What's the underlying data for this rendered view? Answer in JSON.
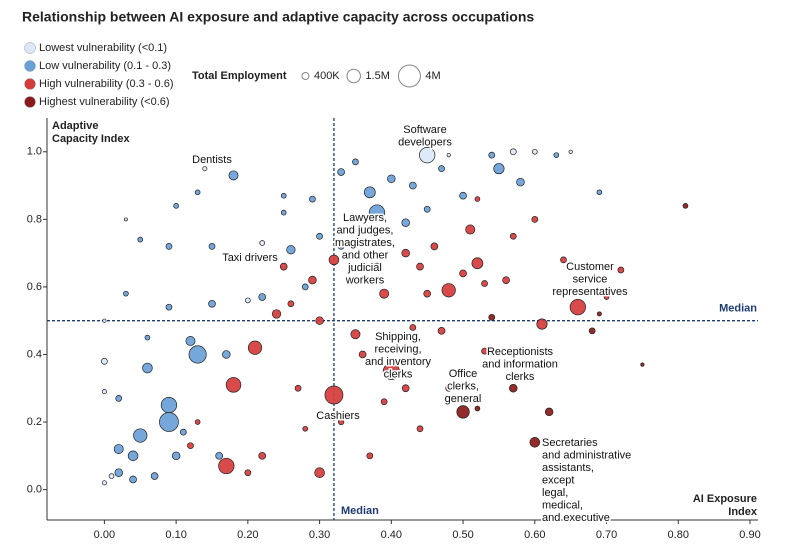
{
  "chart_data": {
    "type": "scatter",
    "title": "Relationship between AI exposure and adaptive capacity across occupations",
    "x_label": [
      "AI Exposure",
      "Index"
    ],
    "y_label": [
      "Adaptive",
      "Capacity Index"
    ],
    "xlim": [
      -0.08,
      0.9
    ],
    "ylim": [
      -0.09,
      1.1
    ],
    "xticks": [
      {
        "value": 0,
        "label": "0.00"
      },
      {
        "value": 0.1,
        "label": "0.10"
      },
      {
        "value": 0.2,
        "label": "0.20"
      },
      {
        "value": 0.3,
        "label": "0.30"
      },
      {
        "value": 0.4,
        "label": "0.40"
      },
      {
        "value": 0.5,
        "label": "0.50"
      },
      {
        "value": 0.6,
        "label": "0.60"
      },
      {
        "value": 0.7,
        "label": "0.70"
      },
      {
        "value": 0.8,
        "label": "0.80"
      },
      {
        "value": 0.9,
        "label": "0.90"
      }
    ],
    "yticks": [
      {
        "value": 0,
        "label": "0.0"
      },
      0.2,
      0.4,
      0.6,
      0.8,
      {
        "value": 1,
        "label": "1.0"
      }
    ],
    "grid": false,
    "medians": {
      "x": 0.32,
      "y": 0.5,
      "label": "Median"
    },
    "size_legend": {
      "title": "Total Employment",
      "sizes": [
        {
          "value": 400000,
          "label": "400K"
        },
        {
          "value": 1500000,
          "label": "1.5M"
        },
        {
          "value": 4000000,
          "label": "4M"
        }
      ]
    },
    "series": [
      {
        "name": "Lowest vulnerability (<0.1)",
        "color": "#dbe8f7",
        "x": [
          0.45,
          0.0,
          0.0,
          0.01,
          0.0,
          0.0,
          0.14,
          0.6,
          0.57,
          0.22,
          0.2,
          0.48,
          0.03,
          0.65
        ],
        "values": [
          0.99,
          0.38,
          0.29,
          0.04,
          0.5,
          0.02,
          0.95,
          1.0,
          1.0,
          0.73,
          0.56,
          0.99,
          0.8,
          1.0
        ],
        "sizes": [
          2000000,
          300000,
          150000,
          200000,
          100000,
          150000,
          150000,
          200000,
          300000,
          200000,
          200000,
          100000,
          80000,
          100000
        ]
      },
      {
        "name": "Low vulnerability (0.1 - 0.3)",
        "color": "#6a9fd8",
        "x": [
          0.13,
          0.09,
          0.05,
          0.09,
          0.02,
          0.04,
          0.06,
          0.12,
          0.02,
          0.04,
          0.07,
          0.1,
          0.17,
          0.15,
          0.26,
          0.18,
          0.38,
          0.37,
          0.43,
          0.55,
          0.58,
          0.4,
          0.35,
          0.5,
          0.47,
          0.54,
          0.63,
          0.29,
          0.25,
          0.1,
          0.05,
          0.09,
          0.15,
          0.28,
          0.22,
          0.09,
          0.03,
          0.06,
          0.02,
          0.16,
          0.11,
          0.33,
          0.45,
          0.42,
          0.69,
          0.33,
          0.3,
          0.13,
          0.25
        ],
        "values": [
          0.4,
          0.25,
          0.16,
          0.2,
          0.12,
          0.1,
          0.36,
          0.44,
          0.05,
          0.03,
          0.04,
          0.1,
          0.4,
          0.55,
          0.71,
          0.93,
          0.82,
          0.88,
          0.9,
          0.95,
          0.91,
          0.92,
          0.97,
          0.87,
          0.95,
          0.99,
          0.99,
          0.86,
          0.82,
          0.84,
          0.74,
          0.72,
          0.72,
          0.6,
          0.57,
          0.54,
          0.58,
          0.45,
          0.27,
          0.1,
          0.17,
          0.94,
          0.83,
          0.79,
          0.88,
          0.72,
          0.75,
          0.88,
          0.87
        ],
        "sizes": [
          2500000,
          2000000,
          1500000,
          3000000,
          700000,
          800000,
          800000,
          700000,
          500000,
          400000,
          400000,
          500000,
          500000,
          400000,
          600000,
          700000,
          2000000,
          1000000,
          400000,
          900000,
          500000,
          500000,
          300000,
          400000,
          300000,
          300000,
          200000,
          300000,
          200000,
          200000,
          200000,
          300000,
          300000,
          300000,
          400000,
          300000,
          200000,
          200000,
          300000,
          400000,
          300000,
          400000,
          300000,
          500000,
          200000,
          300000,
          300000,
          200000,
          200000
        ]
      },
      {
        "name": "High vulnerability (0.3 - 0.6)",
        "color": "#d63b3b",
        "x": [
          0.4,
          0.32,
          0.18,
          0.21,
          0.17,
          0.48,
          0.66,
          0.61,
          0.52,
          0.51,
          0.39,
          0.35,
          0.3,
          0.32,
          0.44,
          0.46,
          0.42,
          0.29,
          0.25,
          0.24,
          0.36,
          0.22,
          0.3,
          0.42,
          0.44,
          0.48,
          0.53,
          0.56,
          0.6,
          0.72,
          0.7,
          0.64,
          0.53,
          0.43,
          0.38,
          0.27,
          0.12,
          0.13,
          0.47,
          0.37,
          0.52,
          0.45,
          0.26,
          0.57,
          0.2,
          0.28,
          0.5,
          0.39,
          0.33
        ],
        "values": [
          0.35,
          0.28,
          0.31,
          0.42,
          0.07,
          0.59,
          0.54,
          0.49,
          0.67,
          0.77,
          0.58,
          0.46,
          0.5,
          0.68,
          0.66,
          0.72,
          0.7,
          0.62,
          0.66,
          0.52,
          0.4,
          0.1,
          0.05,
          0.3,
          0.18,
          0.3,
          0.41,
          0.62,
          0.8,
          0.65,
          0.57,
          0.68,
          0.61,
          0.48,
          0.66,
          0.3,
          0.13,
          0.2,
          0.47,
          0.1,
          0.86,
          0.58,
          0.55,
          0.75,
          0.05,
          0.18,
          0.64,
          0.26,
          0.2
        ],
        "sizes": [
          2200000,
          2700000,
          1800000,
          1500000,
          2000000,
          1500000,
          2000000,
          900000,
          1000000,
          700000,
          700000,
          700000,
          500000,
          800000,
          400000,
          400000,
          500000,
          500000,
          400000,
          600000,
          400000,
          400000,
          800000,
          400000,
          300000,
          300000,
          300000,
          400000,
          300000,
          300000,
          200000,
          300000,
          300000,
          300000,
          400000,
          300000,
          300000,
          200000,
          400000,
          300000,
          200000,
          400000,
          300000,
          300000,
          300000,
          200000,
          400000,
          300000,
          250000
        ]
      },
      {
        "name": "Highest vulnerability (<0.6)",
        "color": "#8b1a1a",
        "x": [
          0.6,
          0.5,
          0.57,
          0.62,
          0.68,
          0.81,
          0.52,
          0.54,
          0.69,
          0.75
        ],
        "values": [
          0.14,
          0.23,
          0.3,
          0.23,
          0.47,
          0.84,
          0.24,
          0.51,
          0.52,
          0.37
        ],
        "sizes": [
          800000,
          1300000,
          500000,
          500000,
          300000,
          200000,
          200000,
          300000,
          150000,
          100000
        ]
      }
    ],
    "annotations": [
      {
        "lines": [
          "Dentists"
        ]
      },
      {
        "lines": [
          "Software",
          "developers"
        ]
      },
      {
        "lines": [
          "Lawyers,",
          "and judges,",
          "magistrates,",
          "and other",
          "judicial",
          "workers"
        ]
      },
      {
        "lines": [
          "Taxi drivers"
        ]
      },
      {
        "lines": [
          "Customer",
          "service",
          "representatives"
        ]
      },
      {
        "lines": [
          "Shipping,",
          "receiving,",
          "and inventory",
          "clerks"
        ]
      },
      {
        "lines": [
          "Receptionists",
          "and information",
          "clerks"
        ]
      },
      {
        "lines": [
          "Office",
          "clerks,",
          "general"
        ]
      },
      {
        "lines": [
          "Cashiers"
        ]
      },
      {
        "lines": [
          "Secretaries",
          "and administrative",
          "assistants,",
          "except",
          "legal,",
          "medical,",
          "and executive"
        ]
      }
    ]
  }
}
